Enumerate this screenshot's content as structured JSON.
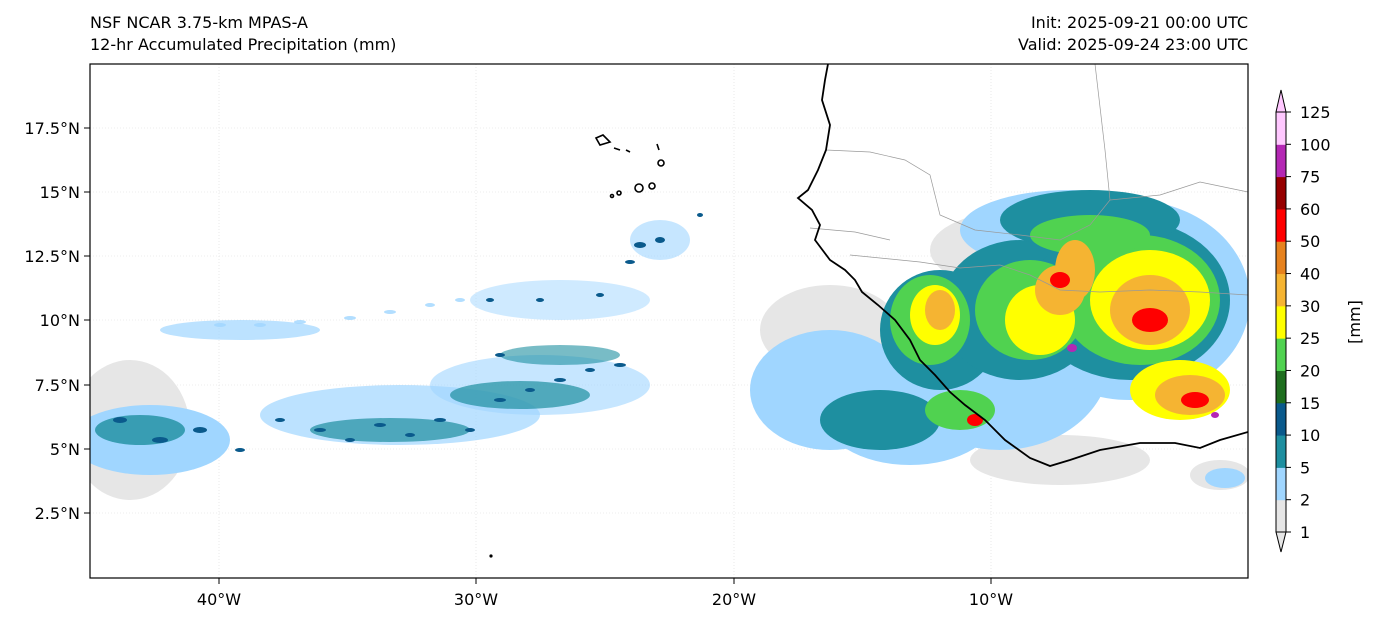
{
  "header": {
    "model": "NSF NCAR 3.75-km MPAS-A",
    "field": "12-hr Accumulated Precipitation (mm)",
    "init": "Init: 2025-09-21 00:00 UTC",
    "valid": "Valid: 2025-09-24 23:00 UTC"
  },
  "axes": {
    "lat_ticks": [
      "17.5°N",
      "15°N",
      "12.5°N",
      "10°N",
      "7.5°N",
      "5°N",
      "2.5°N"
    ],
    "lon_ticks": [
      "40°W",
      "30°W",
      "20°W",
      "10°W"
    ]
  },
  "colorbar": {
    "unit_label": "[mm]",
    "levels": [
      "1",
      "2",
      "5",
      "10",
      "15",
      "20",
      "25",
      "30",
      "40",
      "50",
      "60",
      "75",
      "100",
      "125"
    ],
    "colors": [
      "#e6e6e6",
      "#a0d6ff",
      "#1e8fa0",
      "#0a5a8c",
      "#1e6e1e",
      "#50d250",
      "#ffff00",
      "#f5b432",
      "#e6821e",
      "#ff0000",
      "#960000",
      "#b428b4",
      "#ffc8ff"
    ]
  }
}
